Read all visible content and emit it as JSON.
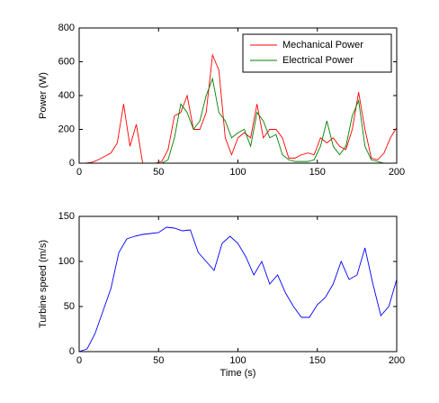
{
  "chart_data": [
    {
      "type": "line",
      "ylabel": "Power (W)",
      "legend": "upper right",
      "x": [
        0,
        4,
        8,
        12,
        16,
        20,
        24,
        28,
        32,
        36,
        40,
        44,
        48,
        52,
        56,
        60,
        64,
        68,
        72,
        76,
        80,
        84,
        88,
        92,
        96,
        100,
        104,
        108,
        112,
        116,
        120,
        124,
        128,
        132,
        136,
        140,
        144,
        148,
        152,
        156,
        160,
        164,
        168,
        172,
        176,
        180,
        184,
        188,
        192,
        196,
        200
      ],
      "series": [
        {
          "name": "Mechanical Power",
          "color": "#ff0000",
          "values": [
            0,
            0,
            5,
            20,
            40,
            60,
            120,
            350,
            100,
            230,
            0,
            0,
            0,
            10,
            80,
            280,
            300,
            400,
            200,
            200,
            300,
            640,
            550,
            150,
            50,
            150,
            180,
            150,
            350,
            150,
            200,
            200,
            150,
            30,
            30,
            50,
            60,
            50,
            150,
            120,
            150,
            100,
            80,
            200,
            420,
            200,
            30,
            20,
            60,
            150,
            210
          ]
        },
        {
          "name": "Electrical Power",
          "color": "#008000",
          "values": [
            0,
            0,
            0,
            0,
            0,
            0,
            0,
            0,
            0,
            0,
            0,
            0,
            0,
            0,
            20,
            150,
            350,
            300,
            200,
            250,
            400,
            500,
            300,
            250,
            150,
            180,
            200,
            100,
            300,
            250,
            150,
            170,
            50,
            20,
            10,
            10,
            10,
            20,
            100,
            250,
            100,
            50,
            100,
            280,
            370,
            100,
            20,
            10,
            0,
            0,
            0
          ]
        }
      ],
      "xlim": [
        0,
        200
      ],
      "ylim": [
        0,
        800
      ],
      "xticks": [
        0,
        50,
        100,
        150,
        200
      ],
      "yticks": [
        0,
        200,
        400,
        600,
        800
      ]
    },
    {
      "type": "line",
      "ylabel": "Turbine speed (m/s)",
      "xlabel": "Time (s)",
      "x": [
        0,
        5,
        10,
        15,
        20,
        25,
        30,
        35,
        40,
        45,
        50,
        55,
        60,
        65,
        70,
        75,
        80,
        85,
        90,
        95,
        100,
        105,
        110,
        115,
        120,
        125,
        130,
        135,
        140,
        145,
        150,
        155,
        160,
        165,
        170,
        175,
        180,
        185,
        190,
        195,
        200
      ],
      "series": [
        {
          "color": "#0000ff",
          "values": [
            0,
            3,
            20,
            45,
            70,
            110,
            125,
            128,
            130,
            131,
            132,
            138,
            137,
            134,
            135,
            110,
            100,
            90,
            120,
            128,
            120,
            105,
            85,
            100,
            75,
            85,
            65,
            50,
            38,
            38,
            52,
            60,
            75,
            100,
            80,
            85,
            115,
            75,
            40,
            50,
            80
          ]
        }
      ],
      "xlim": [
        0,
        200
      ],
      "ylim": [
        0,
        150
      ],
      "xticks": [
        0,
        50,
        100,
        150,
        200
      ],
      "yticks": [
        0,
        50,
        100,
        150
      ]
    }
  ]
}
